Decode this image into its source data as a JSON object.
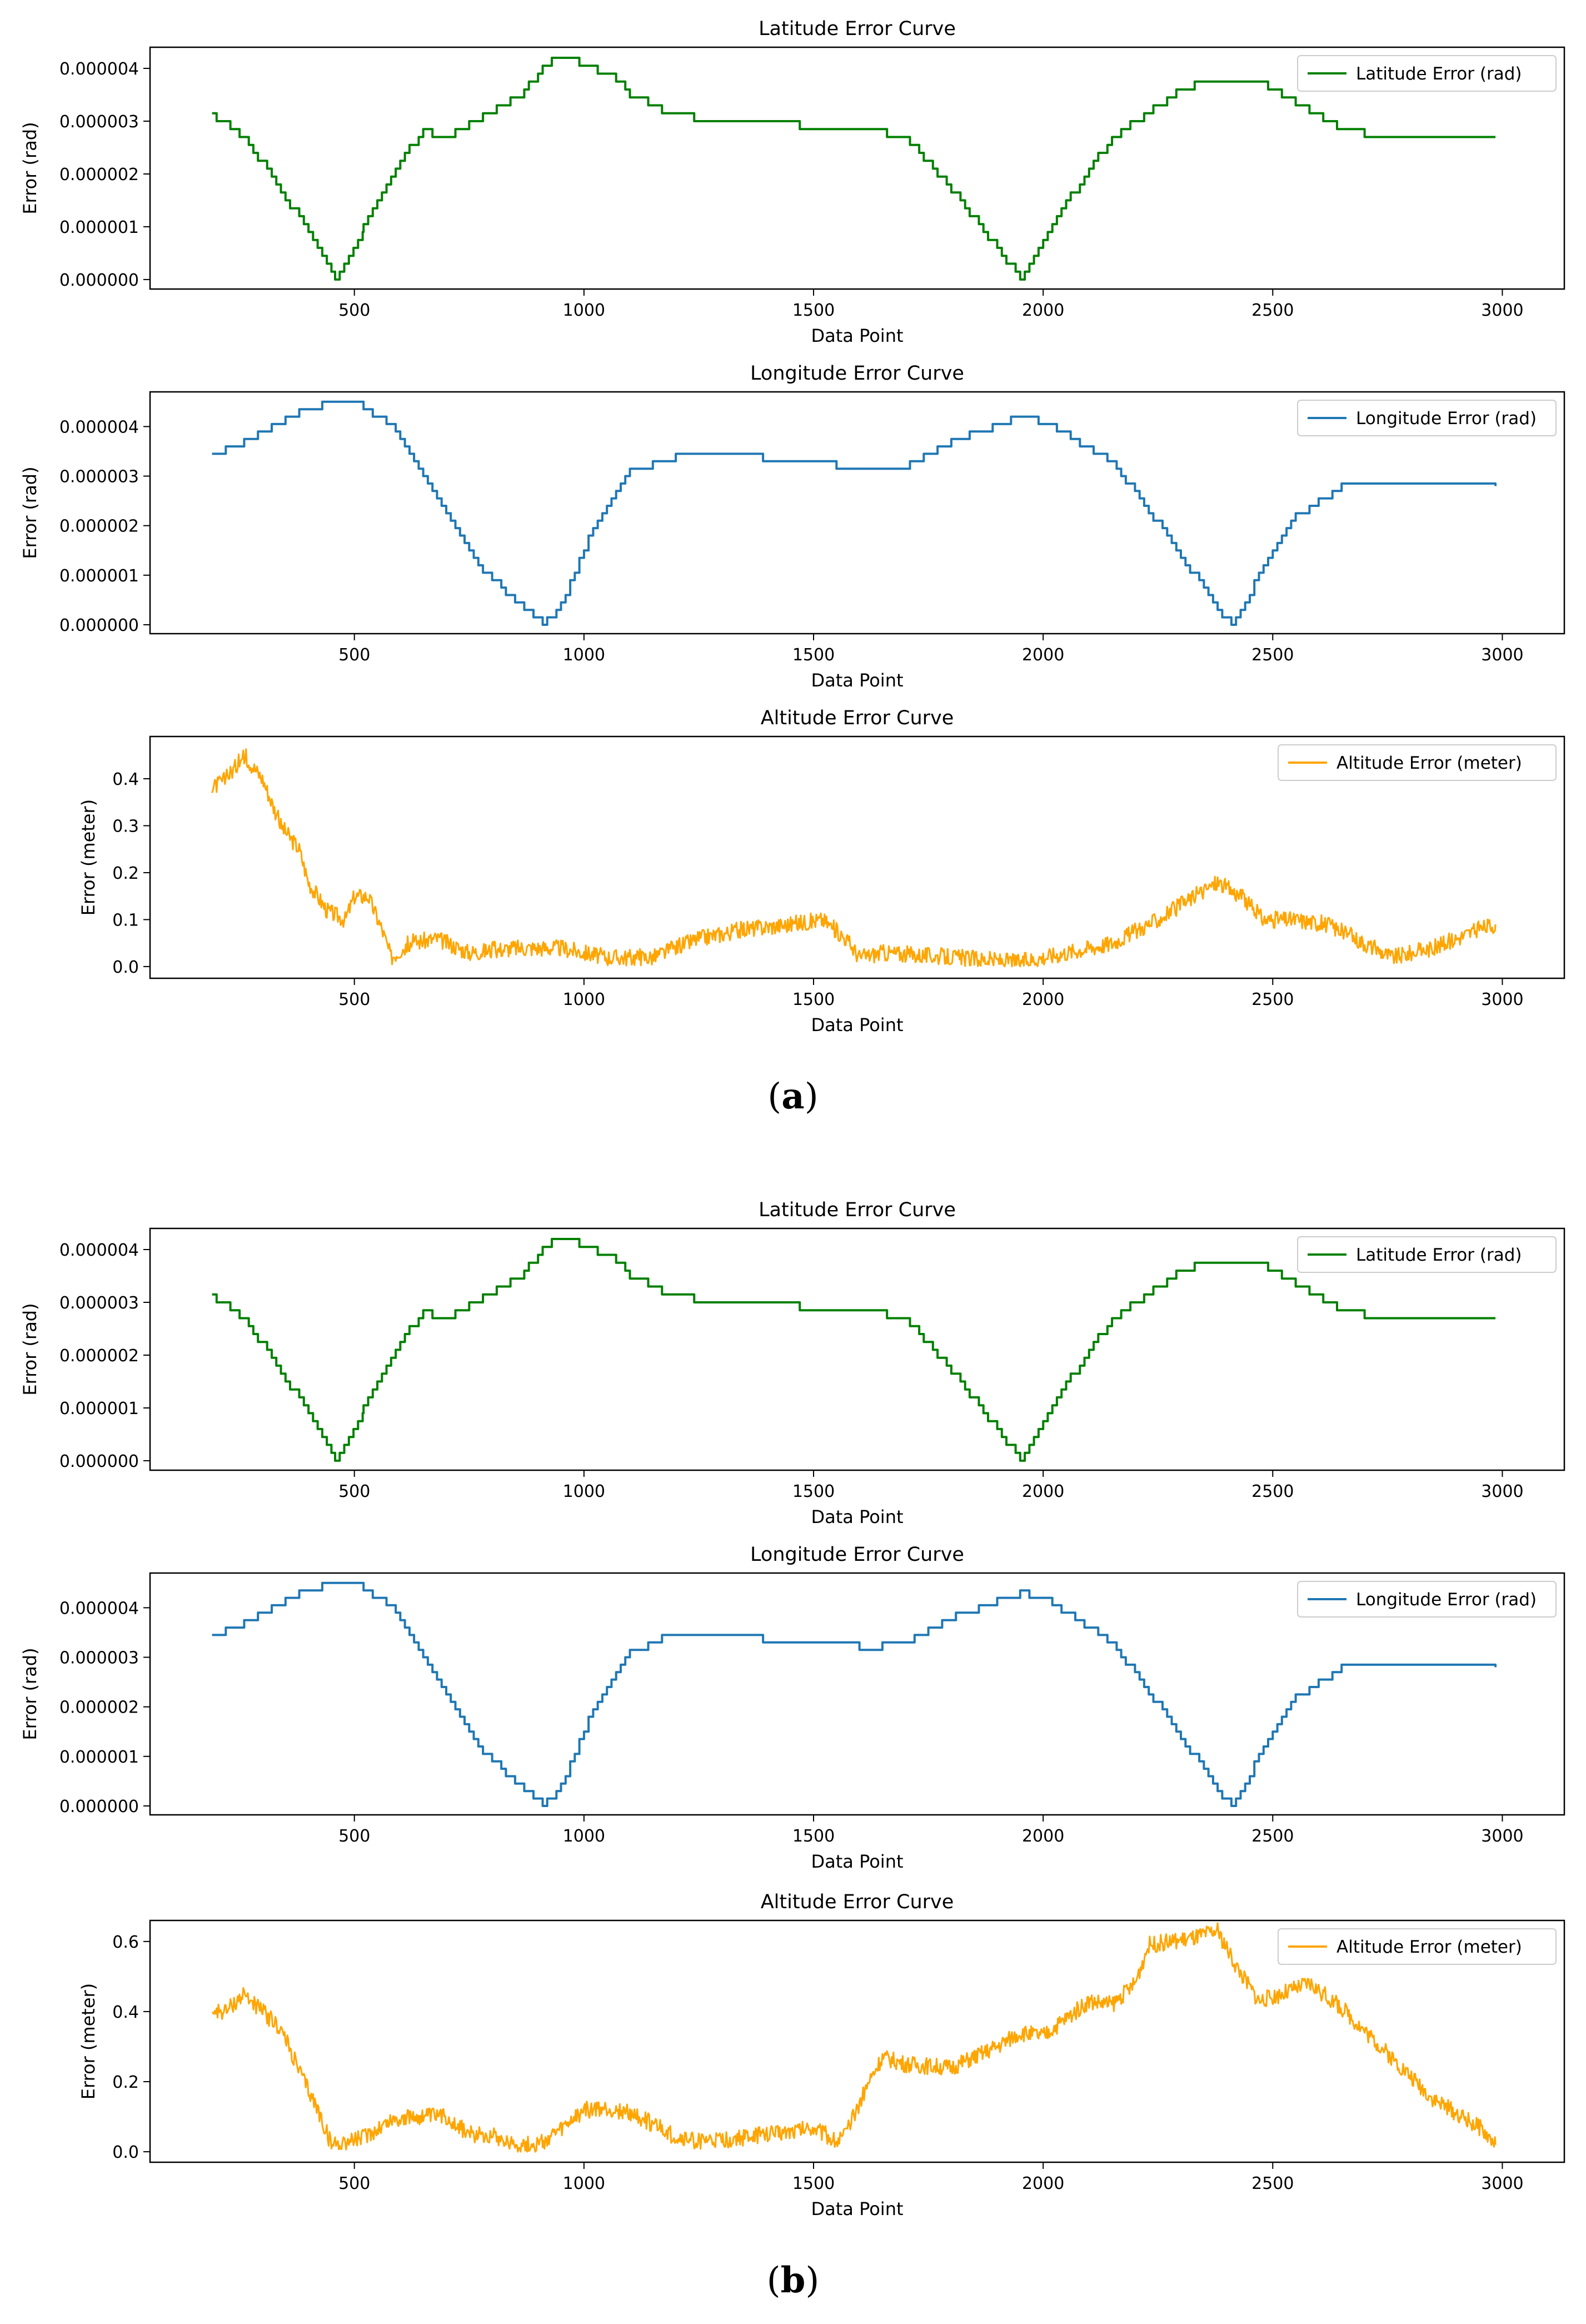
{
  "captions": {
    "a": "a",
    "b": "b"
  },
  "chart_data": [
    {
      "type": "line",
      "title": "Latitude Error Curve",
      "xlabel": "Data Point",
      "ylabel": "Error (rad)",
      "xlim": [
        55,
        3135
      ],
      "ylim": [
        -1.8e-07,
        4.4e-06
      ],
      "xticks": [
        500,
        1000,
        1500,
        2000,
        2500,
        3000
      ],
      "yticks": [
        0,
        1e-06,
        2e-06,
        3e-06,
        4e-06
      ],
      "ytick_labels": [
        "0.000000",
        "0.000001",
        "0.000002",
        "0.000003",
        "0.000004"
      ],
      "legend": "top-right",
      "series": [
        {
          "name": "Latitude Error (rad)",
          "color": "#008000",
          "x": [
            190,
            260,
            330,
            400,
            458,
            520,
            600,
            650,
            700,
            780,
            860,
            930,
            1000,
            1070,
            1100,
            1200,
            1350,
            1500,
            1580,
            1700,
            1800,
            1900,
            1950,
            2020,
            2150,
            2300,
            2380,
            2460,
            2560,
            2660,
            2800,
            2985
          ],
          "y": [
            3.1e-06,
            2.7e-06,
            1.8e-06,
            9e-07,
            0.0,
            1e-06,
            2.3e-06,
            2.8e-06,
            2.7e-06,
            3.1e-06,
            3.5e-06,
            4.2e-06,
            4.1e-06,
            3.8e-06,
            3.5e-06,
            3.1e-06,
            3e-06,
            2.9e-06,
            2.9e-06,
            2.7e-06,
            1.7e-06,
            6e-07,
            0.0,
            1.1e-06,
            2.7e-06,
            3.6e-06,
            3.8e-06,
            3.8e-06,
            3.3e-06,
            2.8e-06,
            2.7e-06,
            2.7e-06
          ]
        }
      ]
    },
    {
      "type": "line",
      "title": "Longitude Error Curve",
      "xlabel": "Data Point",
      "ylabel": "Error (rad)",
      "xlim": [
        55,
        3135
      ],
      "ylim": [
        -1.8e-07,
        4.7e-06
      ],
      "xticks": [
        500,
        1000,
        1500,
        2000,
        2500,
        3000
      ],
      "yticks": [
        0,
        1e-06,
        2e-06,
        3e-06,
        4e-06
      ],
      "ytick_labels": [
        "0.000000",
        "0.000001",
        "0.000002",
        "0.000003",
        "0.000004"
      ],
      "legend": "top-right",
      "series": [
        {
          "name": "Longitude Error (rad)",
          "color": "#1f77b4",
          "x": [
            190,
            300,
            400,
            500,
            580,
            680,
            780,
            860,
            910,
            950,
            1020,
            1100,
            1200,
            1350,
            1500,
            1630,
            1700,
            1800,
            1950,
            2000,
            2150,
            2300,
            2380,
            2410,
            2470,
            2550,
            2650,
            2800,
            2985
          ],
          "y": [
            3.4e-06,
            3.9e-06,
            4.4e-06,
            4.5e-06,
            4e-06,
            2.6e-06,
            1.1e-06,
            4e-07,
            0.0,
            4e-07,
            2e-06,
            3.1e-06,
            3.4e-06,
            3.4e-06,
            3.3e-06,
            3.1e-06,
            3.2e-06,
            3.7e-06,
            4.2e-06,
            4.1e-06,
            3.3e-06,
            1.4e-06,
            3e-07,
            0.0,
            1e-06,
            2.2e-06,
            2.8e-06,
            2.8e-06,
            2.8e-06
          ]
        }
      ]
    },
    {
      "type": "line",
      "title": "Altitude Error Curve",
      "xlabel": "Data Point",
      "ylabel": "Error (meter)",
      "xlim": [
        55,
        3135
      ],
      "ylim": [
        -0.025,
        0.49
      ],
      "xticks": [
        500,
        1000,
        1500,
        2000,
        2500,
        3000
      ],
      "yticks": [
        0,
        0.1,
        0.2,
        0.3,
        0.4
      ],
      "ytick_labels": [
        "0.0",
        "0.1",
        "0.2",
        "0.3",
        "0.4"
      ],
      "legend": "top-right",
      "series": [
        {
          "name": "Altitude Error (meter)",
          "color": "#ffa500",
          "x": [
            190,
            220,
            260,
            300,
            340,
            380,
            400,
            440,
            480,
            500,
            530,
            560,
            580,
            620,
            680,
            750,
            850,
            950,
            1050,
            1150,
            1250,
            1350,
            1450,
            1520,
            1570,
            1600,
            1650,
            1800,
            1950,
            2050,
            2150,
            2250,
            2330,
            2380,
            2430,
            2480,
            2550,
            2620,
            2700,
            2760,
            2850,
            2950,
            2985
          ],
          "y": [
            0.38,
            0.4,
            0.45,
            0.4,
            0.3,
            0.25,
            0.18,
            0.12,
            0.1,
            0.15,
            0.15,
            0.08,
            0.02,
            0.05,
            0.06,
            0.03,
            0.04,
            0.04,
            0.02,
            0.02,
            0.06,
            0.08,
            0.09,
            0.1,
            0.06,
            0.02,
            0.03,
            0.02,
            0.01,
            0.03,
            0.05,
            0.1,
            0.15,
            0.18,
            0.15,
            0.1,
            0.1,
            0.09,
            0.05,
            0.02,
            0.04,
            0.08,
            0.09
          ]
        }
      ]
    },
    {
      "type": "line",
      "title": "Latitude Error Curve",
      "xlabel": "Data Point",
      "ylabel": "Error (rad)",
      "xlim": [
        55,
        3135
      ],
      "ylim": [
        -1.8e-07,
        4.4e-06
      ],
      "xticks": [
        500,
        1000,
        1500,
        2000,
        2500,
        3000
      ],
      "yticks": [
        0,
        1e-06,
        2e-06,
        3e-06,
        4e-06
      ],
      "ytick_labels": [
        "0.000000",
        "0.000001",
        "0.000002",
        "0.000003",
        "0.000004"
      ],
      "legend": "top-right",
      "series": [
        {
          "name": "Latitude Error (rad)",
          "color": "#008000",
          "x": [
            190,
            260,
            330,
            400,
            458,
            520,
            600,
            650,
            700,
            780,
            860,
            930,
            1000,
            1070,
            1100,
            1200,
            1350,
            1500,
            1580,
            1700,
            1800,
            1900,
            1950,
            2020,
            2150,
            2300,
            2380,
            2460,
            2560,
            2660,
            2800,
            2985
          ],
          "y": [
            3.1e-06,
            2.7e-06,
            1.8e-06,
            9e-07,
            0.0,
            1e-06,
            2.3e-06,
            2.8e-06,
            2.7e-06,
            3.1e-06,
            3.5e-06,
            4.2e-06,
            4.1e-06,
            3.8e-06,
            3.5e-06,
            3.1e-06,
            3e-06,
            2.9e-06,
            2.9e-06,
            2.7e-06,
            1.7e-06,
            6e-07,
            0.0,
            1.1e-06,
            2.7e-06,
            3.6e-06,
            3.8e-06,
            3.8e-06,
            3.3e-06,
            2.8e-06,
            2.7e-06,
            2.7e-06
          ]
        }
      ]
    },
    {
      "type": "line",
      "title": "Longitude Error Curve",
      "xlabel": "Data Point",
      "ylabel": "Error (rad)",
      "xlim": [
        55,
        3135
      ],
      "ylim": [
        -1.8e-07,
        4.7e-06
      ],
      "xticks": [
        500,
        1000,
        1500,
        2000,
        2500,
        3000
      ],
      "yticks": [
        0,
        1e-06,
        2e-06,
        3e-06,
        4e-06
      ],
      "ytick_labels": [
        "0.000000",
        "0.000001",
        "0.000002",
        "0.000003",
        "0.000004"
      ],
      "legend": "top-right",
      "series": [
        {
          "name": "Longitude Error (rad)",
          "color": "#1f77b4",
          "x": [
            190,
            300,
            400,
            500,
            580,
            680,
            780,
            860,
            910,
            950,
            1020,
            1100,
            1200,
            1350,
            1500,
            1630,
            1700,
            1800,
            1950,
            2000,
            2150,
            2300,
            2380,
            2410,
            2470,
            2550,
            2650,
            2800,
            2985
          ],
          "y": [
            3.4e-06,
            3.9e-06,
            4.4e-06,
            4.5e-06,
            4e-06,
            2.6e-06,
            1.1e-06,
            4e-07,
            0.0,
            4e-07,
            2e-06,
            3.1e-06,
            3.5e-06,
            3.4e-06,
            3.3e-06,
            3.2e-06,
            3.3e-06,
            3.8e-06,
            4.3e-06,
            4.2e-06,
            3.3e-06,
            1.4e-06,
            3e-07,
            0.0,
            1e-06,
            2.2e-06,
            2.8e-06,
            2.8e-06,
            2.8e-06
          ]
        }
      ]
    },
    {
      "type": "line",
      "title": "Altitude Error Curve",
      "xlabel": "Data Point",
      "ylabel": "Error (meter)",
      "xlim": [
        55,
        3135
      ],
      "ylim": [
        -0.03,
        0.66
      ],
      "xticks": [
        500,
        1000,
        1500,
        2000,
        2500,
        3000
      ],
      "yticks": [
        0,
        0.2,
        0.4,
        0.6
      ],
      "ytick_labels": [
        "0.0",
        "0.2",
        "0.4",
        "0.6"
      ],
      "legend": "top-right",
      "series": [
        {
          "name": "Altitude Error (meter)",
          "color": "#ffa500",
          "x": [
            190,
            220,
            260,
            300,
            340,
            380,
            420,
            450,
            520,
            580,
            640,
            700,
            750,
            800,
            850,
            900,
            950,
            1000,
            1050,
            1100,
            1150,
            1200,
            1250,
            1300,
            1400,
            1450,
            1500,
            1550,
            1570,
            1620,
            1650,
            1700,
            1800,
            1900,
            1950,
            2000,
            2100,
            2150,
            2200,
            2230,
            2280,
            2330,
            2380,
            2420,
            2470,
            2520,
            2580,
            2650,
            2750,
            2850,
            2950,
            2985
          ],
          "y": [
            0.4,
            0.4,
            0.45,
            0.4,
            0.35,
            0.23,
            0.12,
            0.02,
            0.04,
            0.09,
            0.1,
            0.1,
            0.05,
            0.05,
            0.02,
            0.02,
            0.06,
            0.12,
            0.12,
            0.11,
            0.08,
            0.04,
            0.03,
            0.03,
            0.05,
            0.06,
            0.07,
            0.03,
            0.05,
            0.2,
            0.27,
            0.25,
            0.24,
            0.3,
            0.34,
            0.33,
            0.43,
            0.42,
            0.48,
            0.59,
            0.6,
            0.61,
            0.63,
            0.53,
            0.43,
            0.45,
            0.48,
            0.41,
            0.28,
            0.15,
            0.07,
            0.02
          ]
        }
      ]
    }
  ]
}
